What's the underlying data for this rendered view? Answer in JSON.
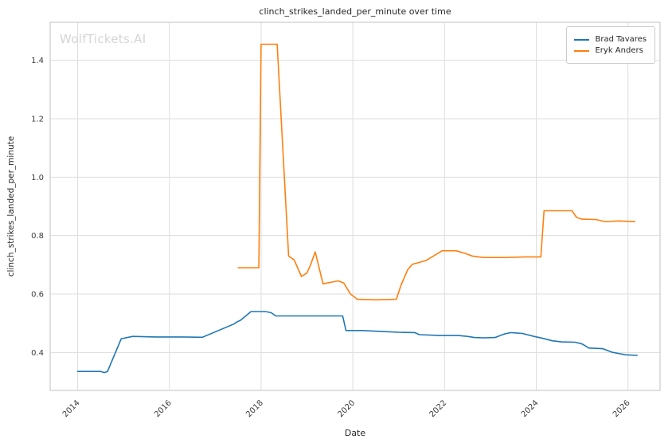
{
  "watermark": "WolfTickets.AI",
  "chart_data": {
    "type": "line",
    "title": "clinch_strikes_landed_per_minute over time",
    "xlabel": "Date",
    "ylabel": "clinch_strikes_landed_per_minute",
    "xlim": [
      2013.4,
      2026.7
    ],
    "ylim": [
      0.27,
      1.53
    ],
    "xticks": [
      2014,
      2016,
      2018,
      2020,
      2022,
      2024,
      2026
    ],
    "yticks": [
      0.4,
      0.6,
      0.8,
      1.0,
      1.2,
      1.4
    ],
    "grid": true,
    "legend_position": "upper right",
    "colors": {
      "grid": "#dddddd",
      "spine": "#cccccc",
      "tick": "#3b3b3b",
      "blue": "#1f77b4",
      "orange": "#ff7f0e"
    },
    "series": [
      {
        "name": "Brad Tavares",
        "color": "#1f77b4",
        "x": [
          2014.0,
          2014.5,
          2014.58,
          2014.65,
          2014.95,
          2015.2,
          2015.7,
          2016.3,
          2016.72,
          2017.4,
          2017.48,
          2017.55,
          2017.78,
          2018.1,
          2018.22,
          2018.32,
          2019.0,
          2019.78,
          2019.85,
          2020.2,
          2020.6,
          2021.0,
          2021.35,
          2021.45,
          2021.9,
          2022.3,
          2022.5,
          2022.65,
          2022.85,
          2023.1,
          2023.3,
          2023.45,
          2023.7,
          2023.95,
          2024.15,
          2024.35,
          2024.55,
          2024.85,
          2025.0,
          2025.15,
          2025.45,
          2025.65,
          2025.95,
          2026.2
        ],
        "y": [
          0.335,
          0.335,
          0.331,
          0.335,
          0.447,
          0.455,
          0.453,
          0.453,
          0.452,
          0.497,
          0.505,
          0.51,
          0.54,
          0.54,
          0.536,
          0.525,
          0.525,
          0.525,
          0.475,
          0.475,
          0.472,
          0.469,
          0.468,
          0.461,
          0.458,
          0.458,
          0.455,
          0.451,
          0.45,
          0.451,
          0.463,
          0.468,
          0.465,
          0.455,
          0.448,
          0.44,
          0.436,
          0.435,
          0.429,
          0.415,
          0.413,
          0.401,
          0.392,
          0.39
        ]
      },
      {
        "name": "Eryk Anders",
        "color": "#ff7f0e",
        "x": [
          2017.5,
          2017.95,
          2018.0,
          2018.35,
          2018.6,
          2018.72,
          2018.88,
          2019.0,
          2019.08,
          2019.18,
          2019.35,
          2019.55,
          2019.68,
          2019.8,
          2019.95,
          2020.1,
          2020.5,
          2020.95,
          2021.05,
          2021.2,
          2021.3,
          2021.45,
          2021.6,
          2021.95,
          2022.25,
          2022.45,
          2022.6,
          2022.85,
          2023.3,
          2023.75,
          2024.1,
          2024.17,
          2024.5,
          2024.78,
          2024.88,
          2025.0,
          2025.3,
          2025.5,
          2025.8,
          2026.15
        ],
        "y": [
          0.69,
          0.69,
          1.455,
          1.455,
          0.73,
          0.717,
          0.66,
          0.672,
          0.7,
          0.744,
          0.635,
          0.641,
          0.645,
          0.638,
          0.6,
          0.582,
          0.58,
          0.582,
          0.63,
          0.684,
          0.702,
          0.708,
          0.715,
          0.748,
          0.748,
          0.739,
          0.73,
          0.725,
          0.725,
          0.727,
          0.727,
          0.885,
          0.885,
          0.885,
          0.862,
          0.856,
          0.855,
          0.848,
          0.85,
          0.848
        ]
      }
    ]
  }
}
